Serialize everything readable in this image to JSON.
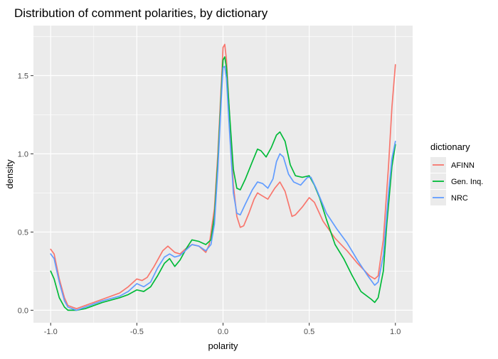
{
  "chart_data": {
    "type": "line",
    "title": "Distribution of comment polarities, by dictionary",
    "xlabel": "polarity",
    "ylabel": "density",
    "xlim": [
      -1.1,
      1.1
    ],
    "ylim": [
      -0.08,
      1.82
    ],
    "x_ticks": [
      -1.0,
      -0.5,
      0.0,
      0.5,
      1.0
    ],
    "x_tick_labels": [
      "-1.0",
      "-0.5",
      "0.0",
      "0.5",
      "1.0"
    ],
    "y_ticks": [
      0.0,
      0.5,
      1.0,
      1.5
    ],
    "y_tick_labels": [
      "0.0",
      "0.5",
      "1.0",
      "1.5"
    ],
    "grid": true,
    "legend": {
      "title": "dictionary",
      "position": "right"
    },
    "series": [
      {
        "name": "AFINN",
        "color": "#F8766D",
        "points": [
          [
            -1.0,
            0.39
          ],
          [
            -0.98,
            0.36
          ],
          [
            -0.95,
            0.2
          ],
          [
            -0.92,
            0.08
          ],
          [
            -0.9,
            0.03
          ],
          [
            -0.85,
            0.01
          ],
          [
            -0.8,
            0.03
          ],
          [
            -0.75,
            0.05
          ],
          [
            -0.7,
            0.07
          ],
          [
            -0.6,
            0.11
          ],
          [
            -0.55,
            0.15
          ],
          [
            -0.5,
            0.2
          ],
          [
            -0.47,
            0.19
          ],
          [
            -0.44,
            0.21
          ],
          [
            -0.4,
            0.28
          ],
          [
            -0.35,
            0.38
          ],
          [
            -0.32,
            0.41
          ],
          [
            -0.28,
            0.37
          ],
          [
            -0.25,
            0.36
          ],
          [
            -0.22,
            0.39
          ],
          [
            -0.18,
            0.42
          ],
          [
            -0.14,
            0.41
          ],
          [
            -0.1,
            0.37
          ],
          [
            -0.08,
            0.42
          ],
          [
            -0.05,
            0.65
          ],
          [
            -0.03,
            1.0
          ],
          [
            -0.01,
            1.45
          ],
          [
            0.0,
            1.68
          ],
          [
            0.01,
            1.7
          ],
          [
            0.02,
            1.6
          ],
          [
            0.04,
            1.2
          ],
          [
            0.06,
            0.8
          ],
          [
            0.08,
            0.6
          ],
          [
            0.1,
            0.53
          ],
          [
            0.12,
            0.54
          ],
          [
            0.15,
            0.62
          ],
          [
            0.18,
            0.71
          ],
          [
            0.2,
            0.75
          ],
          [
            0.23,
            0.73
          ],
          [
            0.26,
            0.71
          ],
          [
            0.3,
            0.78
          ],
          [
            0.33,
            0.82
          ],
          [
            0.36,
            0.76
          ],
          [
            0.4,
            0.6
          ],
          [
            0.42,
            0.61
          ],
          [
            0.46,
            0.66
          ],
          [
            0.5,
            0.72
          ],
          [
            0.53,
            0.69
          ],
          [
            0.58,
            0.57
          ],
          [
            0.65,
            0.46
          ],
          [
            0.72,
            0.38
          ],
          [
            0.78,
            0.3
          ],
          [
            0.85,
            0.22
          ],
          [
            0.88,
            0.2
          ],
          [
            0.9,
            0.22
          ],
          [
            0.93,
            0.45
          ],
          [
            0.96,
            0.92
          ],
          [
            0.98,
            1.3
          ],
          [
            1.0,
            1.57
          ]
        ]
      },
      {
        "name": "Gen. Inq.",
        "color": "#00BA38",
        "points": [
          [
            -1.0,
            0.25
          ],
          [
            -0.98,
            0.2
          ],
          [
            -0.95,
            0.08
          ],
          [
            -0.92,
            0.02
          ],
          [
            -0.9,
            0.0
          ],
          [
            -0.85,
            0.0
          ],
          [
            -0.8,
            0.01
          ],
          [
            -0.75,
            0.03
          ],
          [
            -0.7,
            0.05
          ],
          [
            -0.6,
            0.08
          ],
          [
            -0.55,
            0.1
          ],
          [
            -0.5,
            0.13
          ],
          [
            -0.46,
            0.12
          ],
          [
            -0.42,
            0.15
          ],
          [
            -0.38,
            0.22
          ],
          [
            -0.34,
            0.3
          ],
          [
            -0.31,
            0.33
          ],
          [
            -0.28,
            0.28
          ],
          [
            -0.25,
            0.32
          ],
          [
            -0.21,
            0.4
          ],
          [
            -0.18,
            0.45
          ],
          [
            -0.14,
            0.44
          ],
          [
            -0.1,
            0.42
          ],
          [
            -0.07,
            0.45
          ],
          [
            -0.05,
            0.6
          ],
          [
            -0.03,
            0.95
          ],
          [
            -0.01,
            1.4
          ],
          [
            0.0,
            1.6
          ],
          [
            0.01,
            1.62
          ],
          [
            0.02,
            1.55
          ],
          [
            0.04,
            1.22
          ],
          [
            0.06,
            0.9
          ],
          [
            0.08,
            0.78
          ],
          [
            0.1,
            0.77
          ],
          [
            0.13,
            0.84
          ],
          [
            0.17,
            0.95
          ],
          [
            0.2,
            1.03
          ],
          [
            0.22,
            1.02
          ],
          [
            0.25,
            0.98
          ],
          [
            0.28,
            1.04
          ],
          [
            0.31,
            1.12
          ],
          [
            0.33,
            1.14
          ],
          [
            0.36,
            1.08
          ],
          [
            0.39,
            0.93
          ],
          [
            0.42,
            0.86
          ],
          [
            0.46,
            0.85
          ],
          [
            0.5,
            0.86
          ],
          [
            0.53,
            0.8
          ],
          [
            0.56,
            0.72
          ],
          [
            0.6,
            0.58
          ],
          [
            0.65,
            0.42
          ],
          [
            0.7,
            0.33
          ],
          [
            0.75,
            0.22
          ],
          [
            0.8,
            0.12
          ],
          [
            0.86,
            0.07
          ],
          [
            0.88,
            0.05
          ],
          [
            0.9,
            0.08
          ],
          [
            0.93,
            0.25
          ],
          [
            0.95,
            0.55
          ],
          [
            0.98,
            0.92
          ],
          [
            1.0,
            1.06
          ]
        ]
      },
      {
        "name": "NRC",
        "color": "#619CFF",
        "points": [
          [
            -1.0,
            0.36
          ],
          [
            -0.98,
            0.33
          ],
          [
            -0.95,
            0.18
          ],
          [
            -0.92,
            0.06
          ],
          [
            -0.9,
            0.02
          ],
          [
            -0.85,
            0.0
          ],
          [
            -0.8,
            0.02
          ],
          [
            -0.75,
            0.04
          ],
          [
            -0.7,
            0.06
          ],
          [
            -0.6,
            0.09
          ],
          [
            -0.55,
            0.12
          ],
          [
            -0.5,
            0.17
          ],
          [
            -0.46,
            0.15
          ],
          [
            -0.42,
            0.18
          ],
          [
            -0.38,
            0.27
          ],
          [
            -0.34,
            0.34
          ],
          [
            -0.31,
            0.36
          ],
          [
            -0.28,
            0.34
          ],
          [
            -0.25,
            0.35
          ],
          [
            -0.21,
            0.39
          ],
          [
            -0.18,
            0.42
          ],
          [
            -0.14,
            0.41
          ],
          [
            -0.1,
            0.38
          ],
          [
            -0.07,
            0.42
          ],
          [
            -0.05,
            0.55
          ],
          [
            -0.03,
            0.9
          ],
          [
            -0.01,
            1.35
          ],
          [
            0.0,
            1.55
          ],
          [
            0.01,
            1.56
          ],
          [
            0.02,
            1.48
          ],
          [
            0.04,
            1.1
          ],
          [
            0.06,
            0.75
          ],
          [
            0.08,
            0.62
          ],
          [
            0.1,
            0.61
          ],
          [
            0.13,
            0.68
          ],
          [
            0.17,
            0.77
          ],
          [
            0.2,
            0.82
          ],
          [
            0.23,
            0.81
          ],
          [
            0.26,
            0.78
          ],
          [
            0.29,
            0.84
          ],
          [
            0.31,
            0.95
          ],
          [
            0.33,
            1.0
          ],
          [
            0.35,
            0.98
          ],
          [
            0.38,
            0.87
          ],
          [
            0.41,
            0.82
          ],
          [
            0.45,
            0.8
          ],
          [
            0.49,
            0.85
          ],
          [
            0.51,
            0.85
          ],
          [
            0.54,
            0.78
          ],
          [
            0.6,
            0.62
          ],
          [
            0.66,
            0.52
          ],
          [
            0.72,
            0.43
          ],
          [
            0.78,
            0.32
          ],
          [
            0.84,
            0.22
          ],
          [
            0.88,
            0.16
          ],
          [
            0.9,
            0.18
          ],
          [
            0.93,
            0.35
          ],
          [
            0.96,
            0.75
          ],
          [
            0.98,
            0.97
          ],
          [
            1.0,
            1.08
          ]
        ]
      }
    ]
  }
}
